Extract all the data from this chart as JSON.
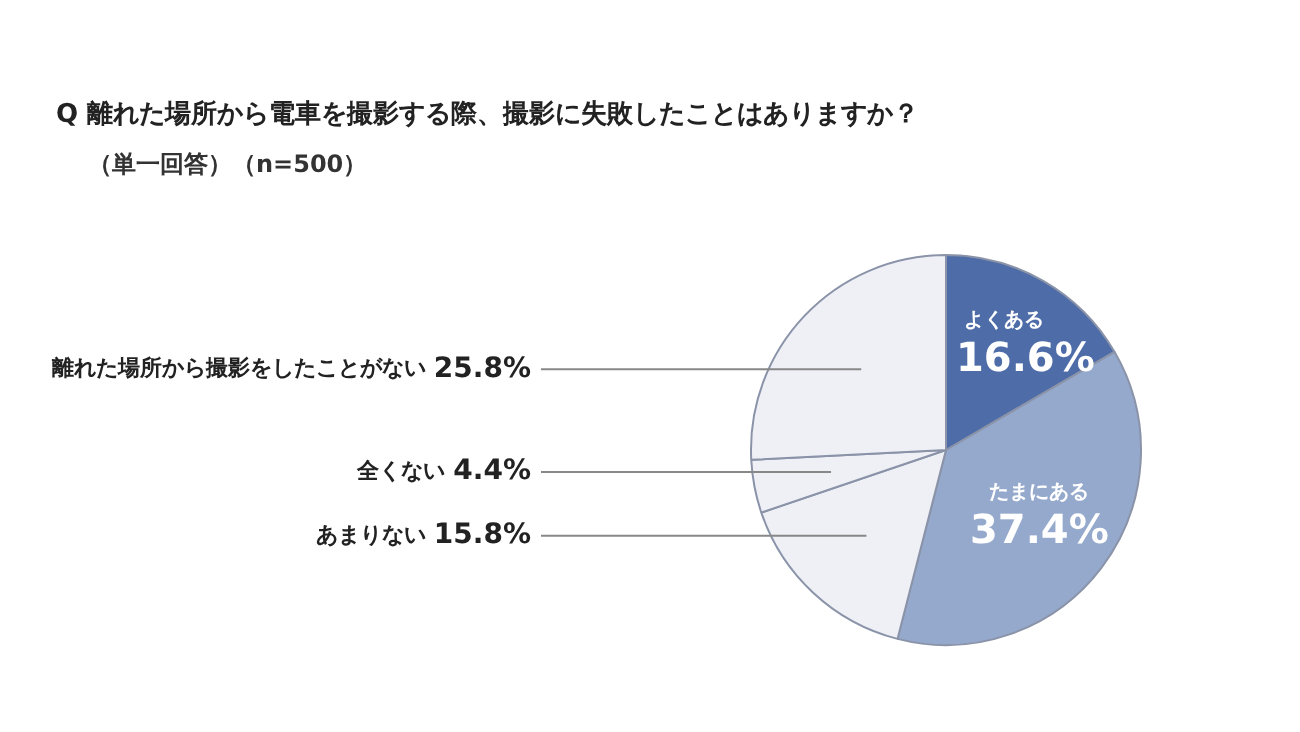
{
  "chart_data": {
    "type": "pie",
    "title": "Q 離れた場所から電車を撮影する際、撮影に失敗したことはありますか？",
    "subtitle": "（単一回答）（n=500）",
    "categories": [
      "よくある",
      "たまにある",
      "あまりない",
      "全くない",
      "離れた場所から撮影をしたことがない"
    ],
    "values": [
      16.6,
      37.4,
      15.8,
      4.4,
      25.8
    ],
    "value_labels": [
      "16.6%",
      "37.4%",
      "15.8%",
      "4.4%",
      "25.8%"
    ],
    "colors": [
      "#4d6ca8",
      "#95a9cd",
      "#eef0f6",
      "#eef0f6",
      "#eef0f6"
    ],
    "legend": false
  }
}
